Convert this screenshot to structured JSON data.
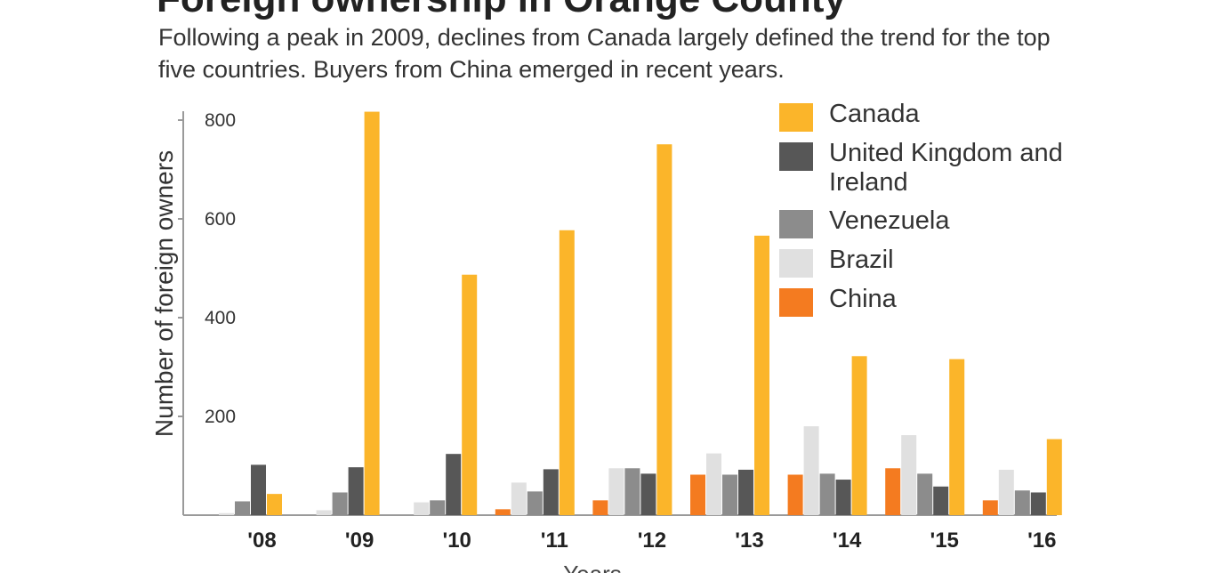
{
  "chart_data": {
    "type": "bar",
    "title": "Foreign ownership in Orange County",
    "subtitle": "Following a peak in 2009, declines from Canada largely defined the trend for the top five countries. Buyers from China emerged in recent years.",
    "xlabel": "Years",
    "ylabel": "Number of foreign owners",
    "ylim": [
      0,
      800
    ],
    "yticks": [
      "800",
      "600",
      "400",
      "200"
    ],
    "categories": [
      "'08",
      "'09",
      "'10",
      "'11",
      "'12",
      "'13",
      "'14",
      "'15",
      "'16"
    ],
    "series": [
      {
        "name": "China",
        "color": "#f47b20",
        "values": [
          0,
          0,
          0,
          12,
          30,
          82,
          82,
          95,
          30
        ]
      },
      {
        "name": "Brazil",
        "color": "#e0e0e0",
        "values": [
          4,
          10,
          26,
          66,
          95,
          125,
          180,
          162,
          92
        ]
      },
      {
        "name": "Venezuela",
        "color": "#8c8c8c",
        "values": [
          28,
          46,
          30,
          48,
          95,
          82,
          84,
          84,
          50
        ]
      },
      {
        "name": "United Kingdom and Ireland",
        "color": "#575757",
        "values": [
          102,
          97,
          124,
          93,
          84,
          92,
          72,
          58,
          46
        ]
      },
      {
        "name": "Canada",
        "color": "#fbb52a",
        "values": [
          43,
          817,
          487,
          577,
          751,
          566,
          322,
          316,
          154
        ]
      }
    ],
    "legend": [
      {
        "name": "Canada",
        "color": "#fbb52a"
      },
      {
        "name": "United Kingdom and Ireland",
        "color": "#575757"
      },
      {
        "name": "Venezuela",
        "color": "#8c8c8c"
      },
      {
        "name": "Brazil",
        "color": "#e0e0e0"
      },
      {
        "name": "China",
        "color": "#f47b20"
      }
    ]
  }
}
